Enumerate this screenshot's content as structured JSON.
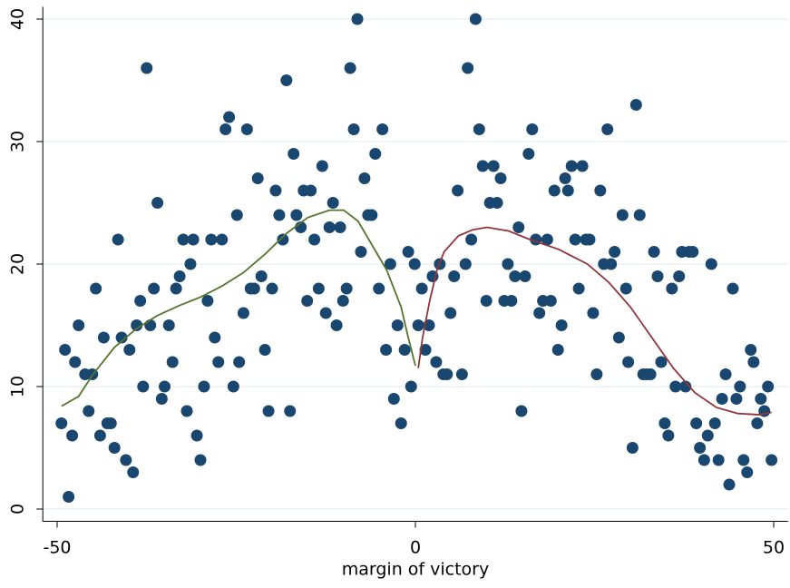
{
  "chart_data": {
    "type": "scatter",
    "x_label": "margin of victory",
    "xlim": [
      -52,
      52
    ],
    "xticks": [
      -50,
      0,
      50
    ],
    "ylim": [
      -1,
      41
    ],
    "yticks": [
      0,
      10,
      20,
      30,
      40
    ],
    "grid": true,
    "series": [
      {
        "type": "scatter",
        "color": "#1a476f",
        "x": [
          -49.4,
          -48.9,
          -48.4,
          -47.9,
          -47.5,
          -47,
          -46.1,
          -45.6,
          -45.1,
          -44.6,
          -44,
          -43.5,
          -43,
          -42.5,
          -42,
          -41.5,
          -41,
          -40.4,
          -39.9,
          -39.4,
          -38.9,
          -38.4,
          -38,
          -37.5,
          -37,
          -36.5,
          -36,
          -35.4,
          -35,
          -34.4,
          -33.9,
          -33.4,
          -32.9,
          -32.4,
          -31.9,
          -31.4,
          -31,
          -30.5,
          -30,
          -29.5,
          -29,
          -28.5,
          -28,
          -27.5,
          -27,
          -26.5,
          -26,
          -25.4,
          -24.9,
          -24.6,
          -24,
          -23.5,
          -23,
          -22.5,
          -22,
          -21.5,
          -21,
          -20.5,
          -20,
          -19.5,
          -19,
          -18.5,
          -18,
          -17.5,
          -17,
          -16.6,
          -16,
          -15.6,
          -15.1,
          -14.6,
          -14.1,
          -13.5,
          -13,
          -12.5,
          -12,
          -11.5,
          -11,
          -10.5,
          -10.1,
          -9.6,
          -9.1,
          -8.6,
          -8.1,
          -7.6,
          -7.1,
          -6.6,
          -6.1,
          -5.6,
          -5.1,
          -4.6,
          -4.1,
          -3.5,
          -3,
          -2.5,
          -2,
          -1.5,
          -1,
          -0.6,
          -0.1,
          0.4,
          0.9,
          1.4,
          1.9,
          2.4,
          2.9,
          3.4,
          3.9,
          4.4,
          4.9,
          5.4,
          5.9,
          6.5,
          7,
          7.3,
          7.8,
          8.4,
          8.9,
          9.4,
          9.9,
          10.4,
          10.9,
          11.4,
          11.9,
          12.4,
          12.9,
          13.4,
          13.9,
          14.4,
          14.8,
          15.3,
          15.8,
          16.3,
          16.8,
          17.3,
          17.8,
          18.4,
          18.9,
          19.4,
          19.9,
          20.4,
          20.9,
          21.3,
          21.8,
          22.3,
          22.8,
          23.3,
          23.8,
          24.3,
          24.8,
          25.3,
          25.8,
          26.3,
          26.8,
          27.3,
          27.8,
          28.4,
          28.9,
          29.4,
          29.7,
          30.3,
          30.8,
          31.3,
          31.8,
          32.3,
          32.8,
          33.3,
          33.8,
          34.3,
          34.8,
          35.3,
          35.8,
          36.3,
          36.8,
          37.2,
          37.7,
          38.2,
          38.7,
          39.2,
          39.7,
          40.3,
          40.8,
          41.3,
          41.8,
          42.3,
          42.8,
          43.3,
          43.8,
          44.3,
          44.8,
          45.3,
          45.8,
          46.3,
          46.8,
          47.2,
          47.7,
          48.2,
          48.7,
          49.2,
          49.7
        ],
        "values": [
          7,
          13,
          1,
          6,
          12,
          15,
          11,
          8,
          11,
          18,
          6,
          14,
          7,
          7,
          5,
          22,
          14,
          4,
          13,
          3,
          15,
          17,
          10,
          36,
          15,
          18,
          25,
          9,
          10,
          15,
          12,
          18,
          19,
          22,
          8,
          20,
          22,
          6,
          4,
          10,
          17,
          22,
          14,
          12,
          22,
          31,
          32,
          10,
          24,
          12,
          16,
          31,
          18,
          18,
          27,
          19,
          13,
          8,
          18,
          26,
          24,
          22,
          35,
          8,
          29,
          24,
          23,
          26,
          17,
          26,
          22,
          18,
          28,
          16,
          23,
          25,
          15,
          23,
          17,
          18,
          36,
          31,
          40,
          21,
          27,
          24,
          24,
          29,
          18,
          31,
          13,
          20,
          9,
          15,
          7,
          13,
          21,
          10,
          20,
          15,
          18,
          13,
          15,
          19,
          12,
          20,
          11,
          11,
          16,
          19,
          26,
          11,
          20,
          36,
          22,
          40,
          31,
          28,
          17,
          25,
          28,
          25,
          27,
          17,
          20,
          17,
          19,
          23,
          8,
          19,
          29,
          31,
          22,
          16,
          17,
          22,
          17,
          26,
          13,
          15,
          27,
          26,
          28,
          22,
          18,
          28,
          22,
          22,
          16,
          11,
          26,
          20,
          31,
          20,
          21,
          14,
          24,
          18,
          12,
          5,
          33,
          24,
          11,
          11,
          11,
          21,
          19,
          12,
          7,
          6,
          18,
          10,
          19,
          21,
          10,
          21,
          21,
          7,
          5,
          4,
          6,
          20,
          7,
          4,
          9,
          11,
          2,
          18,
          9,
          10,
          4,
          3,
          13,
          12,
          7,
          9,
          8,
          10,
          4
        ]
      },
      {
        "type": "line",
        "color": "#55752f",
        "x": [
          -49.4,
          -47,
          -45,
          -42,
          -39,
          -36,
          -33,
          -30,
          -27,
          -24,
          -21,
          -18,
          -15,
          -12,
          -10,
          -8,
          -6,
          -4,
          -2,
          -1,
          0
        ],
        "values": [
          8.4,
          9.2,
          11,
          13.2,
          14.7,
          15.8,
          16.6,
          17.3,
          18.2,
          19.3,
          20.8,
          22.5,
          23.8,
          24.4,
          24.4,
          23.5,
          21.5,
          19.5,
          16.5,
          14,
          11.7
        ]
      },
      {
        "type": "line",
        "color": "#90353b",
        "x": [
          0.4,
          1,
          2,
          3,
          4,
          6,
          8,
          10,
          13,
          16,
          20,
          24,
          27,
          30,
          33,
          36,
          39,
          42,
          45,
          48,
          49.7
        ],
        "values": [
          11.5,
          14,
          17,
          19.5,
          21,
          22.3,
          22.8,
          23,
          22.7,
          22,
          21.2,
          20,
          18.5,
          16.5,
          14,
          11.5,
          9.5,
          8.3,
          7.8,
          7.7,
          7.9
        ]
      }
    ]
  }
}
